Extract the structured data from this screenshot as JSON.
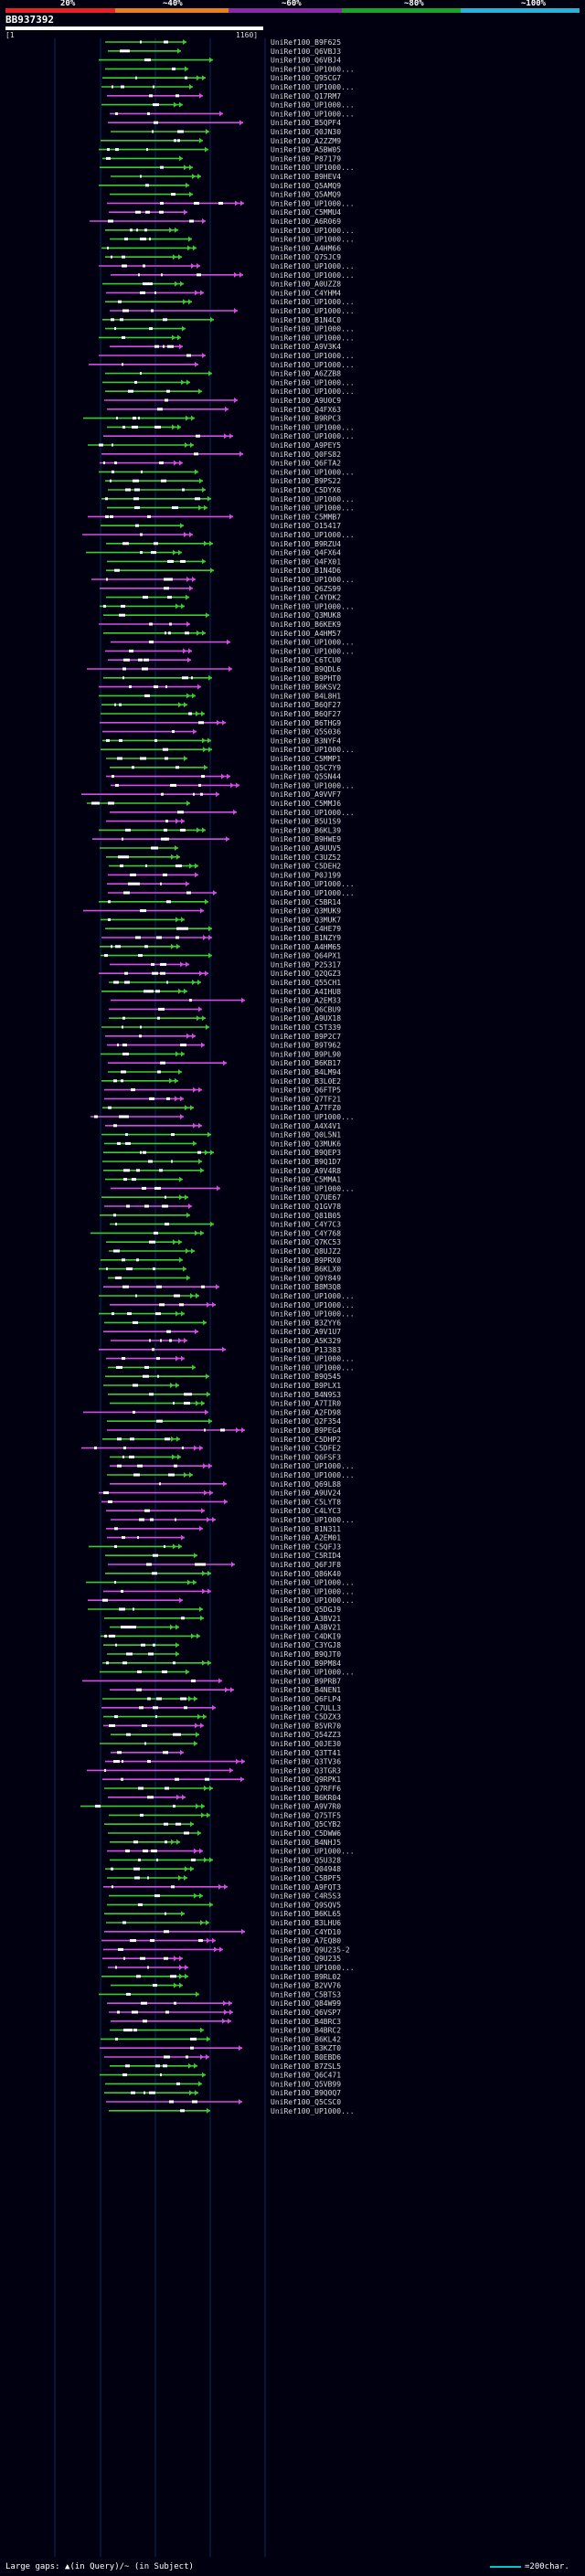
{
  "percent_bar": {
    "labels": [
      "20%",
      "~40%",
      "~60%",
      "~80%",
      "~100%"
    ],
    "colors": [
      "#e8202a",
      "#e8801e",
      "#8a2aa6",
      "#16a62c",
      "#23b4d8"
    ]
  },
  "query": {
    "id": "BB937392",
    "range_start": "[1",
    "range_end": "1160]"
  },
  "legend": {
    "text": "Large gaps: ▲(in Query)/~ (in Subject)",
    "scale_text": "=200char."
  },
  "colors": {
    "green": "#3bcc2e",
    "magenta": "#d44ce0",
    "segment": "#ffffff",
    "gridline": "#0a2a5a"
  },
  "hits": [
    "UniRef100_B9F625",
    "UniRef100_Q6VBJ3",
    "UniRef100_Q6VBJ4",
    "UniRef100_UP1000...",
    "UniRef100_Q95CG7",
    "UniRef100_UP1000...",
    "UniRef100_Q17RM7",
    "UniRef100_UP1000...",
    "UniRef100_UP1000...",
    "UniRef100_B5QPF4",
    "UniRef100_Q0JN30",
    "UniRef100_A2ZZM9",
    "UniRef100_A5BW05",
    "UniRef100_P87179",
    "UniRef100_UP1000...",
    "UniRef100_B9HEV4",
    "UniRef100_Q5AMQ9",
    "UniRef100_Q5AMQ9",
    "UniRef100_UP1000...",
    "UniRef100_C5MMU4",
    "UniRef100_A6R069",
    "UniRef100_UP1000...",
    "UniRef100_UP1000...",
    "UniRef100_A4HM66",
    "UniRef100_Q7SJC9",
    "UniRef100_UP1000...",
    "UniRef100_UP1000...",
    "UniRef100_A0UZZ8",
    "UniRef100_C4YHM4",
    "UniRef100_UP1000...",
    "UniRef100_UP1000...",
    "UniRef100_B1N4C0",
    "UniRef100_UP1000...",
    "UniRef100_UP1000...",
    "UniRef100_A9V3K4",
    "UniRef100_UP1000...",
    "UniRef100_UP1000...",
    "UniRef100_A6ZZB8",
    "UniRef100_UP1000...",
    "UniRef100_UP1000...",
    "UniRef100_A9U0C9",
    "UniRef100_Q4FX63",
    "UniRef100_B9RPC3",
    "UniRef100_UP1000...",
    "UniRef100_UP1000...",
    "UniRef100_A9PEY5",
    "UniRef100_Q0FS82",
    "UniRef100_Q6FTA2",
    "UniRef100_UP1000...",
    "UniRef100_B9PS22",
    "UniRef100_C5DYX6",
    "UniRef100_UP1000...",
    "UniRef100_UP1000...",
    "UniRef100_C5MMB7",
    "UniRef100_O15417",
    "UniRef100_UP1000...",
    "UniRef100_B9RZU4",
    "UniRef100_Q4FX64",
    "UniRef100_Q4FX01",
    "UniRef100_B1N4D6",
    "UniRef100_UP1000...",
    "UniRef100_Q6ZS99",
    "UniRef100_C4YDK2",
    "UniRef100_UP1000...",
    "UniRef100_Q3MUK8",
    "UniRef100_B6KEK9",
    "UniRef100_A4HM57",
    "UniRef100_UP1000...",
    "UniRef100_UP1000...",
    "UniRef100_C6TCU0",
    "UniRef100_B9QDL6",
    "UniRef100_B9PHT0",
    "UniRef100_B6KSV2",
    "UniRef100_B4L8H1",
    "UniRef100_B6QF27",
    "UniRef100_B6QF27",
    "UniRef100_B6THG9",
    "UniRef100_Q5S036",
    "UniRef100_B3NYF4",
    "UniRef100_UP1000...",
    "UniRef100_C5MMP1",
    "UniRef100_Q5C7Y9",
    "UniRef100_Q5SN44",
    "UniRef100_UP1000...",
    "UniRef100_A9VVF7",
    "UniRef100_C5MMJ6",
    "UniRef100_UP1000...",
    "UniRef100_B5U1S9",
    "UniRef100_B6KL39",
    "UniRef100_B9HWE9",
    "UniRef100_A9UUV5",
    "UniRef100_C3UZ52",
    "UniRef100_C5DEH2",
    "UniRef100_P0J199",
    "UniRef100_UP1000...",
    "UniRef100_UP1000...",
    "UniRef100_C5BR14",
    "UniRef100_Q3MUK9",
    "UniRef100_Q3MUK7",
    "UniRef100_C4HE79",
    "UniRef100_B1NZY9",
    "UniRef100_A4HM65",
    "UniRef100_Q64PX1",
    "UniRef100_P25317",
    "UniRef100_Q2QGZ3",
    "UniRef100_Q55CH1",
    "UniRef100_A4IHU8",
    "UniRef100_A2EM33",
    "UniRef100_Q6CBU9",
    "UniRef100_A9UX18",
    "UniRef100_C5T339",
    "UniRef100_B9P2C7",
    "UniRef100_B9T962",
    "UniRef100_B9PL90",
    "UniRef100_B6KB17",
    "UniRef100_B4LM94",
    "UniRef100_B3L0E2",
    "UniRef100_Q6FTP5",
    "UniRef100_Q7TF21",
    "UniRef100_A7TFZ0",
    "UniRef100_UP1000...",
    "UniRef100_A4X4V1",
    "UniRef100_Q0L5N1",
    "UniRef100_Q3MUK6",
    "UniRef100_B9QEP3",
    "UniRef100_B9Q1D7",
    "UniRef100_A9V4R8",
    "UniRef100_C5MMA1",
    "UniRef100_UP1000...",
    "UniRef100_Q7UE67",
    "UniRef100_Q1GV78",
    "UniRef100_Q81B05",
    "UniRef100_C4Y7C3",
    "UniRef100_C4Y768",
    "UniRef100_Q7KC53",
    "UniRef100_Q8UJZ2",
    "UniRef100_B9PRX0",
    "UniRef100_B6KLX0",
    "UniRef100_Q9Y849",
    "UniRef100_B8M3Q8",
    "UniRef100_UP1000...",
    "UniRef100_UP1000...",
    "UniRef100_UP1000...",
    "UniRef100_B3ZYY6",
    "UniRef100_A9V1U7",
    "UniRef100_A5K329",
    "UniRef100_P13383",
    "UniRef100_UP1000...",
    "UniRef100_UP1000...",
    "UniRef100_B9Q545",
    "UniRef100_B9PLX1",
    "UniRef100_B4N9S3",
    "UniRef100_A7TIR0",
    "UniRef100_A2FD98",
    "UniRef100_Q2F354",
    "UniRef100_B9PEG4",
    "UniRef100_C5DHP2",
    "UniRef100_C5DFE2",
    "UniRef100_Q6FSF3",
    "UniRef100_UP1000...",
    "UniRef100_UP1000...",
    "UniRef100_Q69L88",
    "UniRef100_A9UV24",
    "UniRef100_C5LYT8",
    "UniRef100_C4LYC3",
    "UniRef100_UP1000...",
    "UniRef100_B1N311",
    "UniRef100_A2EM01",
    "UniRef100_C5QFJ3",
    "UniRef100_C5RID4",
    "UniRef100_Q6FJF8",
    "UniRef100_Q86K40",
    "UniRef100_UP1000...",
    "UniRef100_UP1000...",
    "UniRef100_UP1000...",
    "UniRef100_Q5DGJ9",
    "UniRef100_A3BV21",
    "UniRef100_A3BV21",
    "UniRef100_C4DKI9",
    "UniRef100_C3YGJ8",
    "UniRef100_B9QJT0",
    "UniRef100_B9PM84",
    "UniRef100_UP1000...",
    "UniRef100_B9PRB7",
    "UniRef100_B4NEN1",
    "UniRef100_Q6FLP4",
    "UniRef100_C7ULL3",
    "UniRef100_C5DZX3",
    "UniRef100_B5VR70",
    "UniRef100_Q54ZZ3",
    "UniRef100_Q0JE30",
    "UniRef100_Q3TT41",
    "UniRef100_Q3TV36",
    "UniRef100_Q3TGR3",
    "UniRef100_Q9RPK1",
    "UniRef100_Q7RFF6",
    "UniRef100_B6KR04",
    "UniRef100_A9V7R0",
    "UniRef100_Q75TF5",
    "UniRef100_Q5CYB2",
    "UniRef100_C5DWW6",
    "UniRef100_B4NHJ5",
    "UniRef100_UP1000...",
    "UniRef100_Q5U328",
    "UniRef100_Q04948",
    "UniRef100_C5BPF5",
    "UniRef100_A9FQT3",
    "UniRef100_C4R5S3",
    "UniRef100_Q9SQV5",
    "UniRef100_B6KL65",
    "UniRef100_B3LHU6",
    "UniRef100_C4YD10",
    "UniRef100_A7EQ80",
    "UniRef100_Q9U235-2",
    "UniRef100_Q9U235",
    "UniRef100_UP1000...",
    "UniRef100_B9RL02",
    "UniRef100_B2VV76",
    "UniRef100_C5BTS3",
    "UniRef100_Q84W99",
    "UniRef100_Q6VSP7",
    "UniRef100_B4BRC3",
    "UniRef100_B4BRC2",
    "UniRef100_B6KL42",
    "UniRef100_B3KZT0",
    "UniRef100_B0EBD6",
    "UniRef100_B7ZSL5",
    "UniRef100_Q6C471",
    "UniRef100_Q5VB99",
    "UniRef100_B9Q0Q7",
    "UniRef100_Q5CSC0",
    "UniRef100_UP1000..."
  ]
}
